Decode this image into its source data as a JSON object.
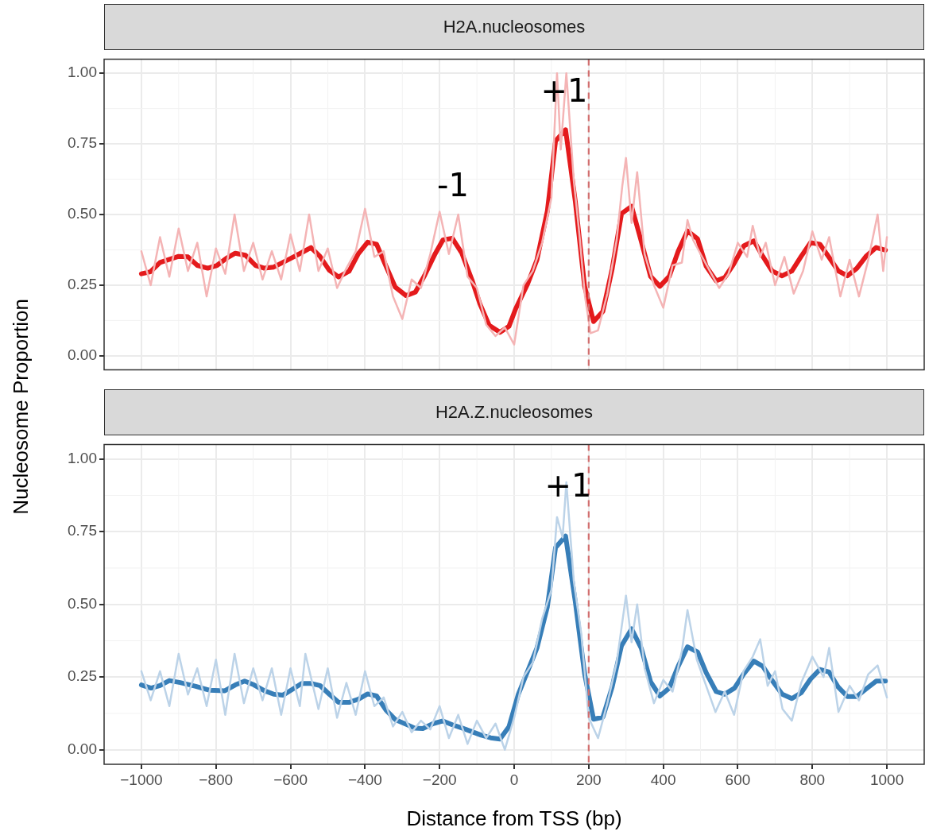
{
  "chart_data": [
    {
      "type": "line",
      "title": "H2A.nucleosomes",
      "ylabel": "Nucleosome Proportion",
      "xlim": [
        -1100,
        1100
      ],
      "ylim": [
        -0.05,
        1.05
      ],
      "xticks": [
        -1000,
        -800,
        -600,
        -400,
        -200,
        0,
        200,
        400,
        600,
        800,
        1000
      ],
      "yticks": [
        {
          "value": 0,
          "label": "0.00"
        },
        {
          "value": 0.25,
          "label": "0.25"
        },
        {
          "value": 0.5,
          "label": "0.50"
        },
        {
          "value": 0.75,
          "label": "0.75"
        },
        {
          "value": 1,
          "label": "1.00"
        }
      ],
      "tick_labels": "y",
      "grid": true,
      "legend": false,
      "marker": "none",
      "line_style": "solid",
      "ref_lines": [
        {
          "axis": "x",
          "value": 200,
          "color": "#d26f6f",
          "line_style": "dashed"
        }
      ],
      "annotations": [
        "-1",
        "+1"
      ],
      "series": [
        {
          "color": "#f4b4b5",
          "x": [
            -1000,
            -975,
            -950,
            -925,
            -900,
            -875,
            -850,
            -825,
            -800,
            -775,
            -750,
            -725,
            -700,
            -675,
            -650,
            -625,
            -600,
            -575,
            -550,
            -525,
            -500,
            -475,
            -450,
            -425,
            -400,
            -375,
            -350,
            -325,
            -300,
            -275,
            -250,
            -225,
            -200,
            -175,
            -150,
            -125,
            -100,
            -75,
            -50,
            -25,
            0,
            25,
            50,
            75,
            100,
            115,
            125,
            140,
            160,
            175,
            190,
            205,
            225,
            250,
            275,
            290,
            300,
            315,
            330,
            350,
            375,
            400,
            425,
            450,
            465,
            480,
            500,
            525,
            550,
            575,
            600,
            625,
            640,
            660,
            675,
            700,
            725,
            750,
            775,
            800,
            825,
            845,
            875,
            900,
            925,
            950,
            975,
            990,
            1000
          ],
          "values": [
            0.37,
            0.25,
            0.42,
            0.28,
            0.45,
            0.3,
            0.4,
            0.21,
            0.38,
            0.29,
            0.5,
            0.3,
            0.4,
            0.27,
            0.37,
            0.27,
            0.43,
            0.3,
            0.5,
            0.3,
            0.38,
            0.24,
            0.31,
            0.37,
            0.52,
            0.35,
            0.37,
            0.21,
            0.13,
            0.27,
            0.24,
            0.36,
            0.51,
            0.36,
            0.5,
            0.28,
            0.24,
            0.11,
            0.07,
            0.1,
            0.04,
            0.25,
            0.3,
            0.4,
            0.56,
            1.0,
            0.73,
            1.0,
            0.62,
            0.43,
            0.21,
            0.08,
            0.09,
            0.22,
            0.41,
            0.6,
            0.7,
            0.47,
            0.65,
            0.36,
            0.25,
            0.17,
            0.32,
            0.33,
            0.48,
            0.41,
            0.36,
            0.3,
            0.24,
            0.29,
            0.4,
            0.35,
            0.46,
            0.35,
            0.4,
            0.25,
            0.35,
            0.22,
            0.3,
            0.44,
            0.34,
            0.42,
            0.21,
            0.34,
            0.21,
            0.34,
            0.5,
            0.3,
            0.42
          ]
        },
        {
          "color": "#e41a1c",
          "x": [
            -1000,
            -976,
            -950,
            -900,
            -875,
            -850,
            -822,
            -797,
            -772,
            -748,
            -721,
            -694,
            -670,
            -645,
            -599,
            -570,
            -545,
            -521,
            -496,
            -471,
            -443,
            -418,
            -393,
            -369,
            -344,
            -319,
            -290,
            -265,
            -240,
            -212,
            -191,
            -166,
            -141,
            -113,
            -92,
            -67,
            -38,
            -14,
            4,
            36,
            61,
            89,
            111,
            138,
            164,
            189,
            213,
            238,
            263,
            288,
            315,
            341,
            366,
            391,
            416,
            440,
            465,
            492,
            515,
            542,
            565,
            589,
            616,
            643,
            667,
            692,
            719,
            745,
            770,
            795,
            820,
            845,
            869,
            894,
            919,
            944,
            971,
            996
          ],
          "values": [
            0.29,
            0.297,
            0.33,
            0.352,
            0.35,
            0.32,
            0.31,
            0.32,
            0.345,
            0.363,
            0.356,
            0.32,
            0.31,
            0.314,
            0.345,
            0.365,
            0.383,
            0.352,
            0.303,
            0.279,
            0.299,
            0.361,
            0.402,
            0.395,
            0.318,
            0.243,
            0.213,
            0.225,
            0.285,
            0.361,
            0.41,
            0.416,
            0.365,
            0.268,
            0.184,
            0.108,
            0.083,
            0.104,
            0.166,
            0.254,
            0.339,
            0.512,
            0.76,
            0.8,
            0.547,
            0.246,
            0.121,
            0.157,
            0.308,
            0.503,
            0.529,
            0.405,
            0.281,
            0.246,
            0.281,
            0.37,
            0.442,
            0.414,
            0.317,
            0.265,
            0.277,
            0.325,
            0.389,
            0.407,
            0.352,
            0.3,
            0.283,
            0.3,
            0.352,
            0.4,
            0.395,
            0.348,
            0.301,
            0.283,
            0.309,
            0.352,
            0.383,
            0.374
          ]
        }
      ]
    },
    {
      "type": "line",
      "title": "H2A.Z.nucleosomes",
      "xlabel": "Distance from TSS (bp)",
      "xlim": [
        -1100,
        1100
      ],
      "ylim": [
        -0.05,
        1.05
      ],
      "xticks": [
        {
          "value": -1000,
          "label": "−1000"
        },
        {
          "value": -800,
          "label": "−800"
        },
        {
          "value": -600,
          "label": "−600"
        },
        {
          "value": -400,
          "label": "−400"
        },
        {
          "value": -200,
          "label": "−200"
        },
        0,
        200,
        400,
        600,
        800,
        1000
      ],
      "yticks": [
        {
          "value": 0,
          "label": "0.00"
        },
        {
          "value": 0.25,
          "label": "0.25"
        },
        {
          "value": 0.5,
          "label": "0.50"
        },
        {
          "value": 0.75,
          "label": "0.75"
        },
        {
          "value": 1,
          "label": "1.00"
        }
      ],
      "grid": true,
      "legend": false,
      "marker": "none",
      "line_style": "solid",
      "ref_lines": [
        {
          "axis": "x",
          "value": 200,
          "color": "#d26f6f",
          "line_style": "dashed"
        }
      ],
      "annotations": [
        "+1"
      ],
      "series": [
        {
          "color": "#bcd3e8",
          "x": [
            -1000,
            -975,
            -950,
            -925,
            -900,
            -875,
            -850,
            -825,
            -800,
            -775,
            -750,
            -725,
            -700,
            -675,
            -650,
            -625,
            -600,
            -575,
            -560,
            -525,
            -500,
            -475,
            -450,
            -425,
            -400,
            -375,
            -350,
            -325,
            -300,
            -275,
            -250,
            -225,
            -200,
            -175,
            -150,
            -125,
            -100,
            -75,
            -50,
            -25,
            0,
            25,
            50,
            75,
            100,
            115,
            130,
            140,
            160,
            180,
            200,
            225,
            250,
            275,
            300,
            315,
            330,
            350,
            375,
            400,
            425,
            450,
            465,
            490,
            515,
            540,
            565,
            590,
            615,
            640,
            660,
            680,
            700,
            720,
            745,
            770,
            800,
            830,
            845,
            870,
            900,
            925,
            950,
            975,
            1000
          ],
          "values": [
            0.27,
            0.17,
            0.27,
            0.15,
            0.33,
            0.19,
            0.28,
            0.15,
            0.31,
            0.12,
            0.33,
            0.16,
            0.28,
            0.17,
            0.28,
            0.12,
            0.28,
            0.15,
            0.33,
            0.14,
            0.28,
            0.11,
            0.23,
            0.12,
            0.27,
            0.15,
            0.18,
            0.08,
            0.13,
            0.06,
            0.1,
            0.07,
            0.15,
            0.04,
            0.12,
            0.02,
            0.1,
            0.04,
            0.09,
            0.0,
            0.11,
            0.25,
            0.3,
            0.45,
            0.55,
            0.8,
            0.73,
            0.92,
            0.58,
            0.4,
            0.11,
            0.04,
            0.16,
            0.3,
            0.53,
            0.37,
            0.5,
            0.28,
            0.16,
            0.24,
            0.2,
            0.34,
            0.48,
            0.31,
            0.22,
            0.13,
            0.2,
            0.12,
            0.27,
            0.32,
            0.38,
            0.22,
            0.27,
            0.14,
            0.1,
            0.23,
            0.32,
            0.25,
            0.35,
            0.13,
            0.22,
            0.17,
            0.26,
            0.29,
            0.18
          ]
        },
        {
          "color": "#377eb8",
          "x": [
            -1000,
            -974,
            -950,
            -925,
            -896,
            -854,
            -818,
            -776,
            -748,
            -723,
            -698,
            -670,
            -645,
            -620,
            -596,
            -570,
            -545,
            -521,
            -496,
            -471,
            -443,
            -418,
            -393,
            -369,
            -344,
            -319,
            -294,
            -266,
            -245,
            -217,
            -191,
            -166,
            -138,
            -88,
            -63,
            -38,
            -14,
            11,
            61,
            89,
            111,
            138,
            164,
            189,
            213,
            238,
            263,
            288,
            315,
            341,
            366,
            391,
            416,
            440,
            465,
            492,
            515,
            542,
            565,
            591,
            616,
            643,
            667,
            692,
            719,
            745,
            770,
            795,
            820,
            845,
            869,
            894,
            919,
            944,
            971,
            996
          ],
          "values": [
            0.223,
            0.212,
            0.221,
            0.238,
            0.231,
            0.218,
            0.205,
            0.203,
            0.223,
            0.236,
            0.223,
            0.203,
            0.191,
            0.188,
            0.207,
            0.228,
            0.228,
            0.221,
            0.191,
            0.163,
            0.163,
            0.174,
            0.192,
            0.185,
            0.137,
            0.104,
            0.09,
            0.074,
            0.073,
            0.09,
            0.099,
            0.086,
            0.074,
            0.05,
            0.041,
            0.037,
            0.079,
            0.19,
            0.349,
            0.491,
            0.695,
            0.735,
            0.509,
            0.261,
            0.105,
            0.112,
            0.216,
            0.358,
            0.416,
            0.349,
            0.234,
            0.185,
            0.212,
            0.287,
            0.354,
            0.336,
            0.265,
            0.2,
            0.191,
            0.212,
            0.261,
            0.305,
            0.287,
            0.238,
            0.191,
            0.176,
            0.196,
            0.243,
            0.276,
            0.267,
            0.216,
            0.183,
            0.183,
            0.209,
            0.236,
            0.236
          ]
        }
      ]
    }
  ]
}
